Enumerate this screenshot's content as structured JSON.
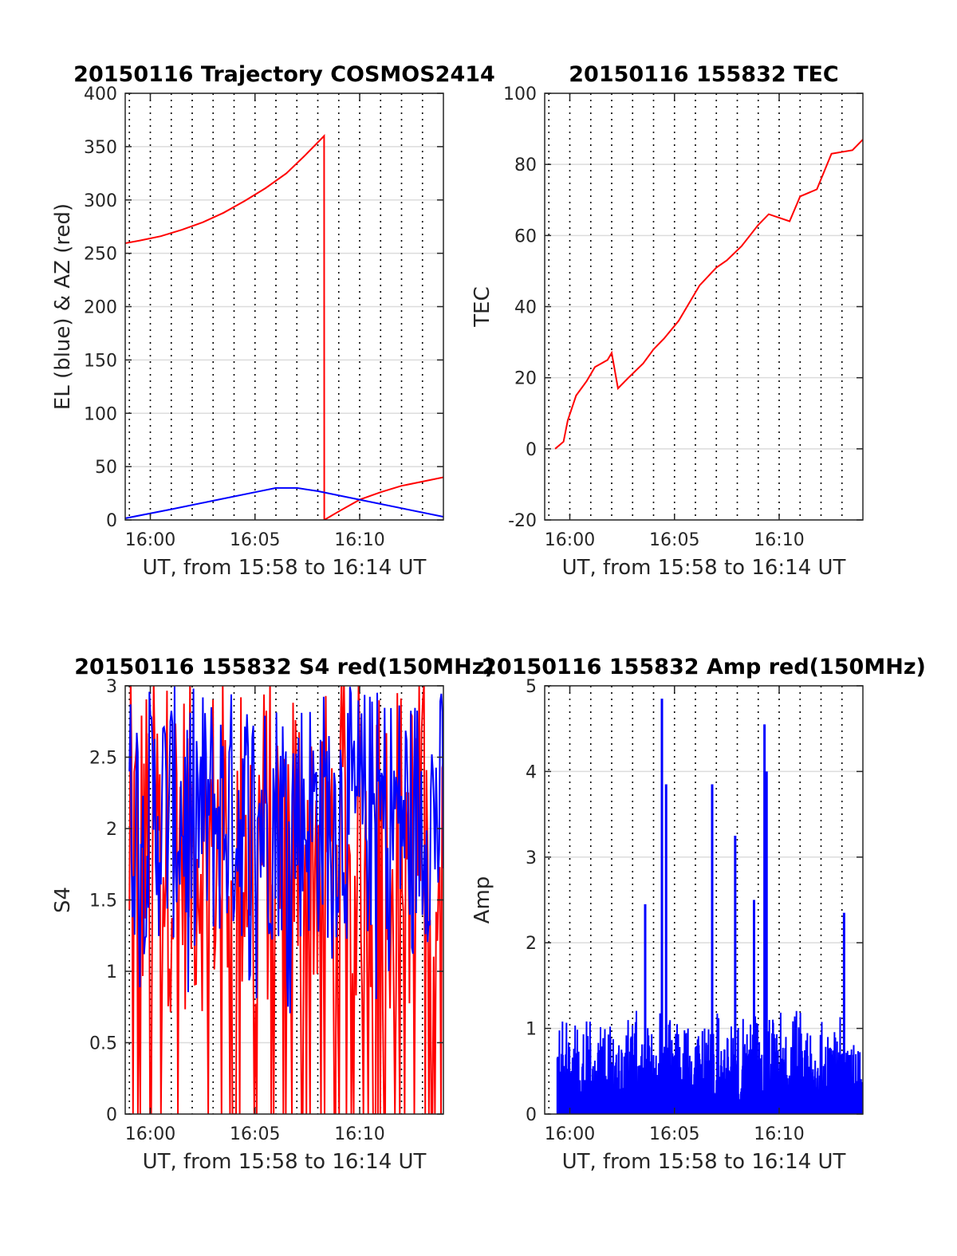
{
  "chart_data": [
    {
      "id": "traj",
      "type": "line",
      "title": "20150116 Trajectory COSMOS2414",
      "xlabel": "UT, from 15:58 to 16:14 UT",
      "ylabel": "EL (blue) & AZ (red)",
      "xlim": [
        -1.2,
        14
      ],
      "ylim": [
        0,
        400
      ],
      "xticks": [
        0,
        5,
        10
      ],
      "xtick_labels": [
        "16:00",
        "16:05",
        "16:10"
      ],
      "yticks": [
        0,
        50,
        100,
        150,
        200,
        250,
        300,
        350,
        400
      ],
      "ytick_labels": [
        "0",
        "50",
        "100",
        "150",
        "200",
        "250",
        "300",
        "350",
        "400"
      ],
      "grid": true,
      "series": [
        {
          "color": "#ff0000",
          "x": [
            -1.6,
            -0.5,
            0.5,
            1.5,
            2.5,
            3.5,
            4.5,
            5.5,
            6.5,
            7.4,
            8.3,
            8.31,
            9.0,
            10.0,
            11.0,
            12.0,
            13.0,
            14.0
          ],
          "values": [
            258,
            262,
            266,
            272,
            279,
            288,
            299,
            311,
            325,
            342,
            360,
            0,
            8,
            19,
            26,
            32,
            36,
            40
          ]
        },
        {
          "color": "#0000ff",
          "x": [
            -1.6,
            1.0,
            3.0,
            5.0,
            6.0,
            7.0,
            8.0,
            10.0,
            12.0,
            14.0
          ],
          "values": [
            0,
            10,
            18,
            26,
            30,
            30,
            27,
            19,
            11,
            3
          ]
        }
      ]
    },
    {
      "id": "tec",
      "type": "line",
      "title": "20150116 155832 TEC",
      "xlabel": "UT, from 15:58 to 16:14 UT",
      "ylabel": "TEC",
      "xlim": [
        -1.2,
        14
      ],
      "ylim": [
        -20,
        100
      ],
      "xticks": [
        0,
        5,
        10
      ],
      "xtick_labels": [
        "16:00",
        "16:05",
        "16:10"
      ],
      "yticks": [
        -20,
        0,
        20,
        40,
        60,
        80,
        100
      ],
      "ytick_labels": [
        "-20",
        "0",
        "20",
        "40",
        "60",
        "80",
        "100"
      ],
      "grid": true,
      "series": [
        {
          "color": "#ff0000",
          "x": [
            -0.7,
            -0.3,
            -0.1,
            0.3,
            0.8,
            1.2,
            1.8,
            2.0,
            2.3,
            2.8,
            3.5,
            4.0,
            4.5,
            5.2,
            6.2,
            7.0,
            7.5,
            8.2,
            9.0,
            9.5,
            10.5,
            11.0,
            11.8,
            12.5,
            13.5,
            14.0
          ],
          "values": [
            0,
            2,
            8,
            15,
            19,
            23,
            25,
            27,
            17,
            20,
            24,
            28,
            31,
            36,
            46,
            51,
            53,
            57,
            63,
            66,
            64,
            71,
            73,
            83,
            84,
            87
          ]
        }
      ]
    },
    {
      "id": "s4",
      "type": "line",
      "title": "20150116 155832 S4 red(150MHz)",
      "xlabel": "UT, from 15:58 to 16:14 UT",
      "ylabel": "S4",
      "xlim": [
        -1.2,
        14
      ],
      "ylim": [
        0,
        3
      ],
      "xticks": [
        0,
        5,
        10
      ],
      "xtick_labels": [
        "16:00",
        "16:05",
        "16:10"
      ],
      "yticks": [
        0,
        0.5,
        1,
        1.5,
        2,
        2.5,
        3
      ],
      "ytick_labels": [
        "0",
        "0.5",
        "1",
        "1.5",
        "2",
        "2.5",
        "3"
      ],
      "grid": true,
      "noise_series": [
        {
          "color": "#ff0000",
          "start": -1.0,
          "end": 14.0,
          "n": 260,
          "base": 1.9,
          "amp": 1.2,
          "drop": 0.22
        },
        {
          "color": "#0000ff",
          "start": -1.0,
          "end": 14.0,
          "n": 300,
          "base": 2.1,
          "amp": 0.9,
          "drop": 0.0
        }
      ]
    },
    {
      "id": "amp",
      "type": "line",
      "title": "20150116 155832 Amp red(150MHz)",
      "xlabel": "UT, from 15:58 to 16:14 UT",
      "ylabel": "Amp",
      "xlim": [
        -1.2,
        14
      ],
      "ylim": [
        0,
        5
      ],
      "xticks": [
        0,
        5,
        10
      ],
      "xtick_labels": [
        "16:00",
        "16:05",
        "16:10"
      ],
      "yticks": [
        0,
        1,
        2,
        3,
        4,
        5
      ],
      "ytick_labels": [
        "0",
        "1",
        "2",
        "3",
        "4",
        "5"
      ],
      "grid": true,
      "noise_series": [
        {
          "color": "#0000ff",
          "start": -0.6,
          "end": 14.0,
          "n": 700,
          "base": 0.6,
          "amp": 0.7,
          "drop": 0.0
        }
      ],
      "peaks": [
        {
          "x": 4.4,
          "value": 4.85
        },
        {
          "x": 4.6,
          "value": 3.85
        },
        {
          "x": 6.8,
          "value": 3.85
        },
        {
          "x": 7.9,
          "value": 3.25
        },
        {
          "x": 9.3,
          "value": 4.55
        },
        {
          "x": 9.4,
          "value": 4.0
        },
        {
          "x": 3.6,
          "value": 2.45
        },
        {
          "x": 8.8,
          "value": 2.5
        },
        {
          "x": 13.1,
          "value": 2.35
        }
      ]
    }
  ]
}
